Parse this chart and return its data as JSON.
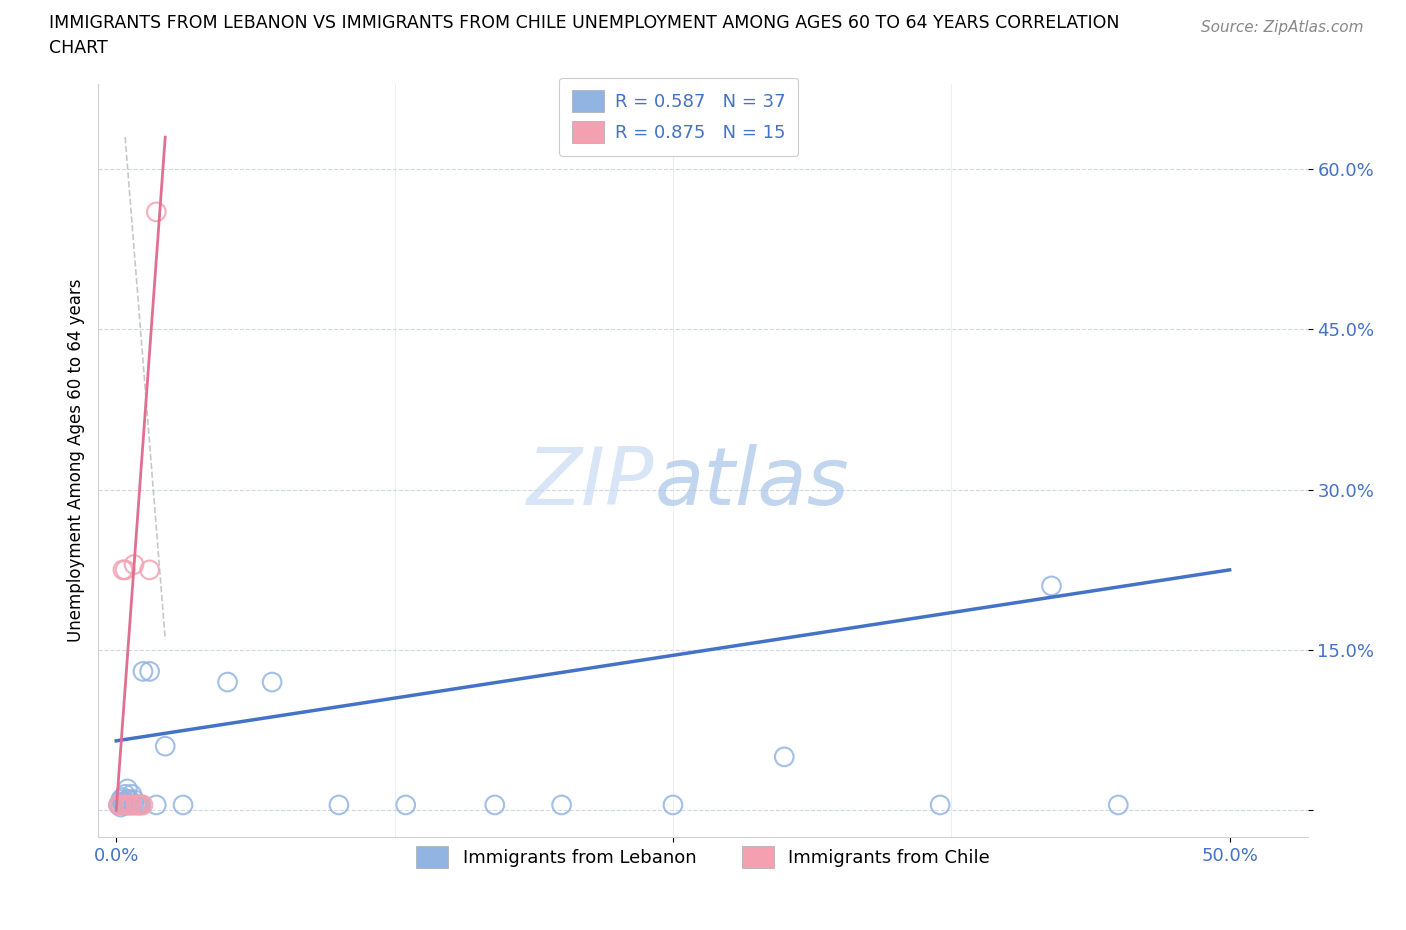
{
  "title_line1": "IMMIGRANTS FROM LEBANON VS IMMIGRANTS FROM CHILE UNEMPLOYMENT AMONG AGES 60 TO 64 YEARS CORRELATION",
  "title_line2": "CHART",
  "source": "Source: ZipAtlas.com",
  "ylabel": "Unemployment Among Ages 60 to 64 years",
  "ytick_values": [
    0.0,
    0.15,
    0.3,
    0.45,
    0.6
  ],
  "ytick_labels": [
    "",
    "15.0%",
    "30.0%",
    "45.0%",
    "60.0%"
  ],
  "xtick_values": [
    0.0,
    0.25,
    0.5
  ],
  "xtick_labels": [
    "0.0%",
    "",
    "50.0%"
  ],
  "xlim": [
    -0.008,
    0.535
  ],
  "ylim": [
    -0.025,
    0.68
  ],
  "lebanon_R": 0.587,
  "lebanon_N": 37,
  "chile_R": 0.875,
  "chile_N": 15,
  "lebanon_color": "#92b4e3",
  "chile_color": "#f4a0b0",
  "lebanon_line_color": "#4472c4",
  "chile_line_color": "#e07090",
  "watermark_zip": "ZIP",
  "watermark_atlas": "atlas",
  "watermark_color_zip": "#c8d8f0",
  "watermark_color_atlas": "#b8d0f0",
  "legend_entry1": "Immigrants from Lebanon",
  "legend_entry2": "Immigrants from Chile",
  "lb_x": [
    0.001,
    0.002,
    0.002,
    0.003,
    0.003,
    0.003,
    0.004,
    0.004,
    0.004,
    0.005,
    0.005,
    0.005,
    0.006,
    0.006,
    0.007,
    0.007,
    0.008,
    0.008,
    0.009,
    0.01,
    0.011,
    0.012,
    0.015,
    0.018,
    0.022,
    0.03,
    0.05,
    0.07,
    0.1,
    0.13,
    0.17,
    0.2,
    0.25,
    0.3,
    0.37,
    0.42,
    0.45
  ],
  "lb_y": [
    0.005,
    0.003,
    0.01,
    0.005,
    0.007,
    0.012,
    0.005,
    0.008,
    0.015,
    0.005,
    0.01,
    0.02,
    0.005,
    0.01,
    0.005,
    0.015,
    0.005,
    0.01,
    0.005,
    0.005,
    0.005,
    0.13,
    0.13,
    0.005,
    0.06,
    0.005,
    0.12,
    0.12,
    0.005,
    0.005,
    0.005,
    0.005,
    0.005,
    0.05,
    0.005,
    0.21,
    0.005
  ],
  "ch_x": [
    0.001,
    0.002,
    0.003,
    0.004,
    0.004,
    0.005,
    0.006,
    0.007,
    0.008,
    0.009,
    0.01,
    0.011,
    0.012,
    0.015,
    0.018
  ],
  "ch_y": [
    0.005,
    0.005,
    0.225,
    0.005,
    0.225,
    0.005,
    0.005,
    0.005,
    0.23,
    0.005,
    0.005,
    0.005,
    0.005,
    0.225,
    0.56
  ],
  "blue_line_x": [
    0.0,
    0.5
  ],
  "blue_line_y": [
    0.065,
    0.225
  ],
  "pink_line_x": [
    0.0,
    0.022
  ],
  "pink_line_y": [
    0.0,
    0.63
  ],
  "ref_line_x": [
    0.004,
    0.022
  ],
  "ref_line_y": [
    0.63,
    0.16
  ]
}
